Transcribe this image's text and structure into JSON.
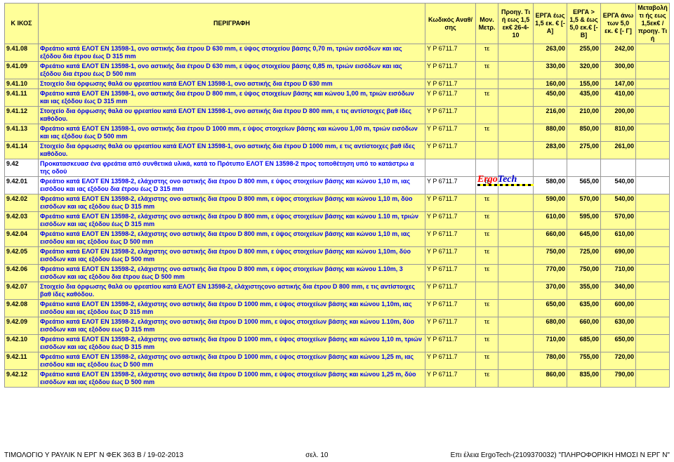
{
  "headers": {
    "c0": "Κ ΙΚΟΣ",
    "c1": "ΠΕΡΙΓΡΑΦΗ",
    "c2": "Κωδικός Αναθ/σης",
    "c3": "Μον.\nΜετρ.",
    "c4": "Προηγ. Τι ή\nεως 1,5 εκ€\n26-4-10",
    "c5": "ΕΡΓΑ έως\n1,5 εκ. €\n[-Α]",
    "c6": "ΕΡΓΑ > 1,5\n& έως 5,0\nεκ.€\n[-Β]",
    "c7": "ΕΡΓΑ άνω\nτων 5,0 εκ.\n€  [- Γ]",
    "c8": "Μεταβολή\nτι ής εως\n1,5εκ€ /\nπροηγ. Τι ή"
  },
  "col_widths": [
    "48px",
    "auto",
    "72px",
    "32px",
    "50px",
    "48px",
    "48px",
    "50px",
    "48px"
  ],
  "rows": [
    {
      "code": "9.41.08",
      "desc": "Φρεάτιο κατά ΕΛΟΤ ΕΝ 13598-1, ονο αστικής δια έτρου D 630 mm, ε ύψος στοιχείου βάσης 0,70 m, τριών εισόδων και ιας εξόδου δια έτρου έως D 315 mm",
      "ana": "Υ Ρ 6711.7",
      "unit": "τε",
      "v1": "",
      "v2": "263,00",
      "v3": "255,00",
      "v4": "242,00",
      "shade": true
    },
    {
      "code": "9.41.09",
      "desc": "Φρεάτιο κατά ΕΛΟΤ ΕΝ 13598-1, ονο αστικής δια έτρου D 630 mm, ε ύψος στοιχείου βάσης 0,85 m, τριών εισόδων και ιας εξόδου δια έτρου έως D 500 mm",
      "ana": "Υ Ρ 6711.7",
      "unit": "τε",
      "v1": "",
      "v2": "330,00",
      "v3": "320,00",
      "v4": "300,00",
      "shade": true
    },
    {
      "code": "9.41.10",
      "desc": "Στοιχείο δια όρφωσης θαλά ου φρεατίου κατά ΕΛΟΤ ΕΝ 13598-1, ονο αστικής δια έτρου D 630 mm",
      "ana": "Υ Ρ 6711.7",
      "unit": "",
      "v1": "",
      "v2": "160,00",
      "v3": "155,00",
      "v4": "147,00",
      "shade": true
    },
    {
      "code": "9.41.11",
      "desc": "Φρεάτιο κατά ΕΛΟΤ ΕΝ 13598-1, ονο αστικής δια έτρου D 800 mm, ε ύψος στοιχείων βάσης και κώνου 1,00 m, τριών εισόδων και ιας εξόδου έως D 315 mm",
      "ana": "Υ Ρ 6711.7",
      "unit": "τε",
      "v1": "",
      "v2": "450,00",
      "v3": "435,00",
      "v4": "410,00",
      "shade": true
    },
    {
      "code": "9.41.12",
      "desc": "Στοιχείο δια όρφωσης θαλά ου φρεατίου κατά ΕΛΟΤ ΕΝ 13598-1, ονο αστικής δια έτρου D 800 mm, ε τις αντίστοιχες βαθ ίδες καθόδου.",
      "ana": "Υ Ρ 6711.7",
      "unit": "",
      "v1": "",
      "v2": "216,00",
      "v3": "210,00",
      "v4": "200,00",
      "shade": true
    },
    {
      "code": "9.41.13",
      "desc": "Φρεάτιο κατά ΕΛΟΤ ΕΝ 13598-1, ονο αστικής δια έτρου D 1000 mm, ε ύψος στοιχείων βάσης και κώνου 1,00 m, τριών εισόδων και ιας εξόδου έως D 500 mm",
      "ana": "Υ Ρ 6711.7",
      "unit": "τε",
      "v1": "",
      "v2": "880,00",
      "v3": "850,00",
      "v4": "810,00",
      "shade": true
    },
    {
      "code": "9.41.14",
      "desc": "Στοιχείο δια όρφωσης θαλά ου φρεατίου κατά ΕΛΟΤ ΕΝ 13598-1, ονο αστικής δια έτρου D 1000 mm, ε τις αντίστοιχες βαθ ίδες καθόδου.",
      "ana": "Υ Ρ 6711.7",
      "unit": "",
      "v1": "",
      "v2": "283,00",
      "v3": "275,00",
      "v4": "261,00",
      "shade": true
    },
    {
      "code": "9.42",
      "desc": "Προκατασκευασ ένα φρεάτια από συνθετικά υλικά, κατά το Πρότυπο ΕΛΟΤ ΕΝ 13598-2 προς τοποθέτηση υπό το κατάστρω α της οδού",
      "ana": "",
      "unit": "",
      "v1": "",
      "v2": "",
      "v3": "",
      "v4": "",
      "shade": false
    },
    {
      "code": "9.42.01",
      "desc": "Φρεάτιο κατά ΕΛΟΤ ΕΝ 13598-2, ελάχιστης ονο αστικής δια έτρου D 800 mm, ε ύψος στοιχείων βάσης και κώνου 1,10 m, ιας εισόδου και ιας εξόδου δια έτρου έως D 315 mm",
      "ana": "Υ Ρ 6711.7",
      "unit": "τε",
      "v1": "",
      "v2": "580,00",
      "v3": "565,00",
      "v4": "540,00",
      "shade": false
    },
    {
      "code": "9.42.02",
      "desc": "Φρεάτιο κατά ΕΛΟΤ ΕΝ 13598-2, ελάχιστης ονο αστικής δια έτρου D 800 mm, ε ύψος στοιχείων βάσης και κώνου 1,10 m, δύο εισόδων και ιας εξόδου έως D 315 mm",
      "ana": "Υ Ρ 6711.7",
      "unit": "τε",
      "v1": "",
      "v2": "590,00",
      "v3": "570,00",
      "v4": "540,00",
      "shade": true
    },
    {
      "code": "9.42.03",
      "desc": "Φρεάτιο κατά ΕΛΟΤ ΕΝ 13598-2, ελάχιστης ονο αστικής δια έτρου D 800 mm, ε ύψος στοιχείων βάσης και κώνου 1.10 m, τριών εισόδων και ιας εξόδου έως D 315 mm",
      "ana": "Υ Ρ 6711.7",
      "unit": "τε",
      "v1": "",
      "v2": "610,00",
      "v3": "595,00",
      "v4": "570,00",
      "shade": true
    },
    {
      "code": "9.42.04",
      "desc": "Φρεάτιο κατά ΕΛΟΤ ΕΝ 13598-2, ελάχιστης ονο αστικής δια έτρου D 800 mm, ε ύψος στοιχείων βάσης και κώνου 1,10 m, ιας εισόδου και ιας εξόδου έως D 500 mm",
      "ana": "Υ Ρ 6711.7",
      "unit": "τε",
      "v1": "",
      "v2": "660,00",
      "v3": "645,00",
      "v4": "610,00",
      "shade": true
    },
    {
      "code": "9.42.05",
      "desc": "Φρεάτιο κατά ΕΛΟΤ ΕΝ 13598-2, ελάχιστης ονο αστικής δια έτρου D 800 mm, ε ύψος στοιχείων βάσης και κώνου 1,10m, δύο εισόδων και ιας εξόδου έως D 500 mm",
      "ana": "Υ Ρ 6711.7",
      "unit": "τε",
      "v1": "",
      "v2": "750,00",
      "v3": "725,00",
      "v4": "690,00",
      "shade": true
    },
    {
      "code": "9.42.06",
      "desc": "Φρεάτιο κατά ΕΛΟΤ ΕΝ 13598-2, ελάχιστης ονο αστικής δια έτρου D 800 mm, ε ύψος στοιχείων βάσης και κώνου 1.10m, 3 εισόδων και ιας εξόδου δια έτρου έως D 500 mm",
      "ana": "Υ Ρ 6711.7",
      "unit": "τε",
      "v1": "",
      "v2": "770,00",
      "v3": "750,00",
      "v4": "710,00",
      "shade": true
    },
    {
      "code": "9.42.07",
      "desc": "Στοιχείο δια όρφωσης θαλά ου φρεατίου κατά ΕΛΟΤ ΕΝ 13598-2, ελάχιστηςονο αστικής δια έτρου D 800 mm, ε τις αντίστοιχες βαθ ίδες καθόδου.",
      "ana": "Υ Ρ 6711.7",
      "unit": "",
      "v1": "",
      "v2": "370,00",
      "v3": "355,00",
      "v4": "340,00",
      "shade": true
    },
    {
      "code": "9.42.08",
      "desc": "Φρεάτιο κατά ΕΛΟΤ ΕΝ 13598-2, ελάχιστης ονο αστικής δια έτρου D 1000 mm, ε ύψος στοιχείων βάσης και κώνου 1,10m, ιας εισόδου και ιας εξόδου έως D 315 mm",
      "ana": "Υ Ρ 6711.7",
      "unit": "τε",
      "v1": "",
      "v2": "650,00",
      "v3": "635,00",
      "v4": "600,00",
      "shade": true
    },
    {
      "code": "9.42.09",
      "desc": "Φρεάτιο κατά ΕΛΟΤ ΕΝ 13598-2, ελάχιστης ονο αστικής δια έτρου D 1000 mm, ε ύψος στοιχείων βάσης και κώνου 1.10m, δύο εισόδων και ιας εξόδου εως D 315 mm",
      "ana": "Υ Ρ 6711.7",
      "unit": "τε",
      "v1": "",
      "v2": "680,00",
      "v3": "660,00",
      "v4": "630,00",
      "shade": true
    },
    {
      "code": "9.42.10",
      "desc": "Φρεάτιο κατά ΕΛΟΤ ΕΝ 13598-2, ελάχιστης ονο αστικής δια έτρου D 1000 mm, ε ύψος στοιχείων βάσης και κώνου 1,10 m, τριών εισόδων και ιας εξόδου έως D 315 mm",
      "ana": "Υ Ρ 6711.7",
      "unit": "τε",
      "v1": "",
      "v2": "710,00",
      "v3": "685,00",
      "v4": "650,00",
      "shade": true
    },
    {
      "code": "9.42.11",
      "desc": "Φρεάτιο κατά ΕΛΟΤ ΕΝ 13598-2, ελάχιστης ονο αστικής δια έτρου D 1000 mm, ε ύψος στοιχείων βάσης και κώνου 1,25 m, ιας εισόδου και ιας εξόδου έως D 500 mm",
      "ana": "Υ Ρ 6711.7",
      "unit": "τε",
      "v1": "",
      "v2": "780,00",
      "v3": "755,00",
      "v4": "720,00",
      "shade": true
    },
    {
      "code": "9.42.12",
      "desc": "Φρεάτιο κατά ΕΛΟΤ ΕΝ 13598-2, ελάχιστης ονο αστικής δια έτρου D 1000 mm, ε ύψος στοιχείων βάσης και κώνου 1,25 m, δύο εισόδων και ιας εξόδου έως D 500 mm",
      "ana": "Υ Ρ 6711.7",
      "unit": "τε",
      "v1": "",
      "v2": "860,00",
      "v3": "835,00",
      "v4": "790,00",
      "shade": true
    }
  ],
  "footer": {
    "left": "ΤΙΜΟΛΟΓΙΟ Υ ΡΑΥΛΙΚ Ν ΕΡΓ Ν ΦΕΚ 363 Β / 19-02-2013",
    "mid": "σελ. 10",
    "right": "Επι έλεια ErgoTech-(2109370032) \"ΠΛΗΡΟΦΟΡΙΚΗ ΗΜΟΣΙ Ν ΕΡΓ Ν\""
  }
}
